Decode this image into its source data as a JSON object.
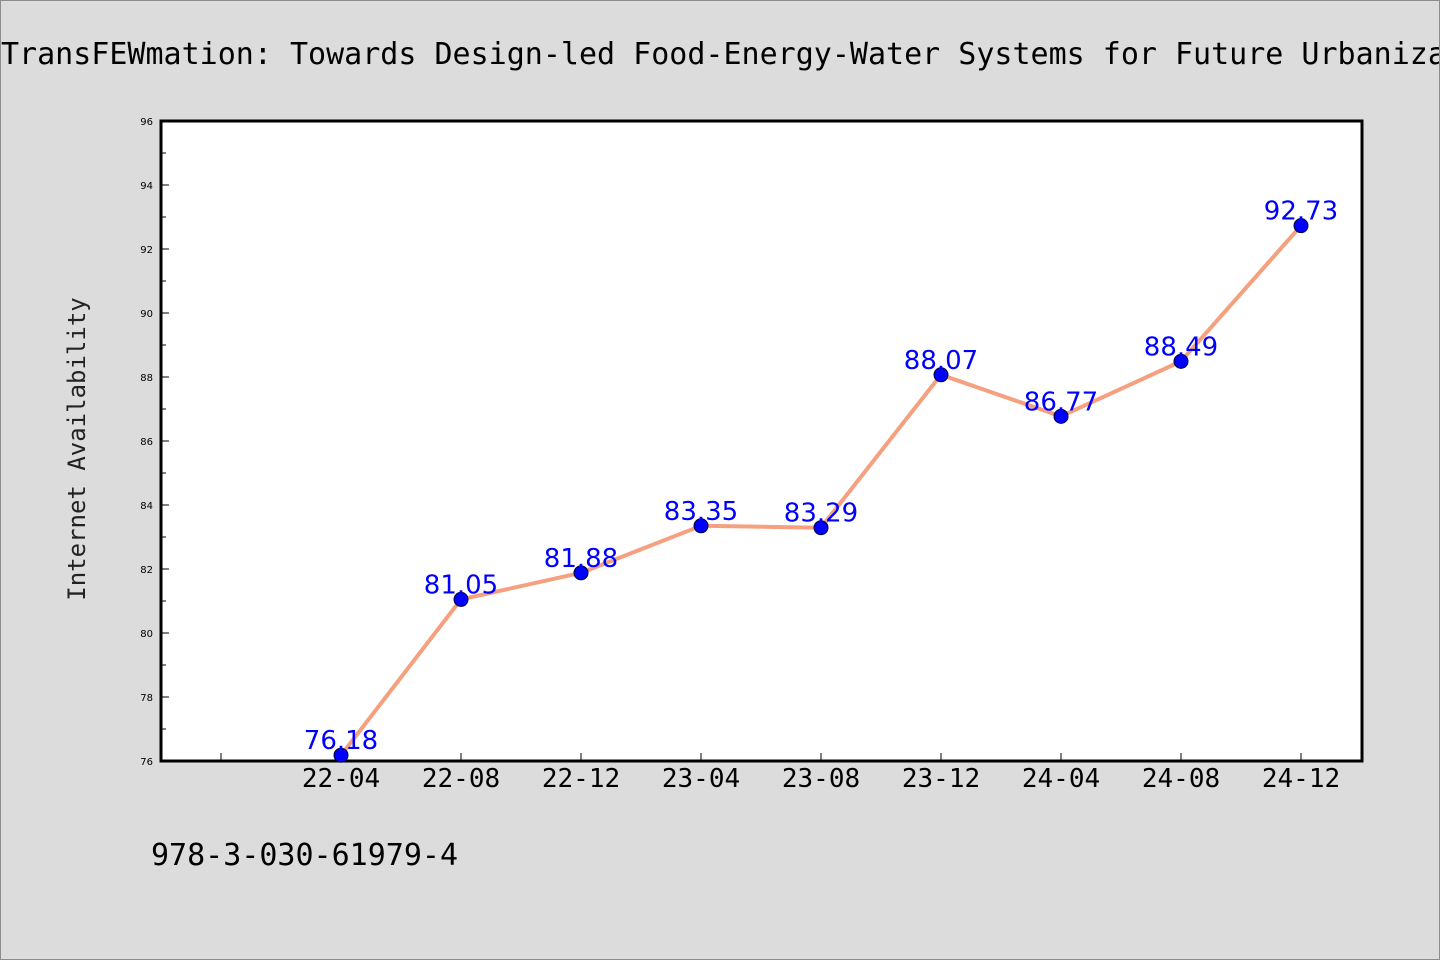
{
  "title": "TransFEWmation: Towards Design-led Food-Energy-Water Systems for Future Urbaniza",
  "footer_text": "978-3-030-61979-4",
  "colors": {
    "background": "#dcdcdc",
    "plot_background": "#ffffff",
    "line": "#f5a07f",
    "marker": "#0000ff",
    "data_label": "#0000ff"
  },
  "chart_data": {
    "type": "line",
    "title": "TransFEWmation: Towards Design-led Food-Energy-Water Systems for Future Urbaniza",
    "xlabel": "",
    "ylabel": "Internet Availability",
    "categories": [
      "22-04",
      "22-08",
      "22-12",
      "23-04",
      "23-08",
      "23-12",
      "24-04",
      "24-08",
      "24-12"
    ],
    "series": [
      {
        "values": [
          76.18,
          81.05,
          81.88,
          83.35,
          83.29,
          88.07,
          86.77,
          88.49,
          92.73
        ]
      }
    ],
    "ylim": [
      76,
      96
    ],
    "yticks": [
      76,
      78,
      80,
      82,
      84,
      86,
      88,
      90,
      92,
      94,
      96
    ],
    "grid": false,
    "legend": "none",
    "data_labels": [
      "76.18",
      "81.05",
      "81.88",
      "83.35",
      "83.29",
      "88.07",
      "86.77",
      "88.49",
      "92.73"
    ]
  }
}
